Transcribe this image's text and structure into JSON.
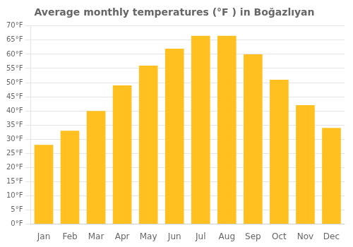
{
  "chart_data": {
    "type": "bar",
    "title": "Average monthly temperatures (°F ) in Boğazlıyan",
    "categories": [
      "Jan",
      "Feb",
      "Mar",
      "Apr",
      "May",
      "Jun",
      "Jul",
      "Aug",
      "Sep",
      "Oct",
      "Nov",
      "Dec"
    ],
    "values": [
      28,
      33,
      40,
      49,
      56,
      62,
      66.5,
      66.5,
      60,
      51,
      42,
      34
    ],
    "color": "#FFC020",
    "ylim": [
      0,
      70
    ],
    "yticks": [
      {
        "value": 0,
        "label": "0°F"
      },
      {
        "value": 5,
        "label": "5°F"
      },
      {
        "value": 10,
        "label": "10°F"
      },
      {
        "value": 15,
        "label": "15°F"
      },
      {
        "value": 20,
        "label": "20°F"
      },
      {
        "value": 25,
        "label": "25°F"
      },
      {
        "value": 30,
        "label": "30°F"
      },
      {
        "value": 35,
        "label": "35°F"
      },
      {
        "value": 40,
        "label": "40°F"
      },
      {
        "value": 45,
        "label": "45°F"
      },
      {
        "value": 50,
        "label": "50°F"
      },
      {
        "value": 55,
        "label": "55°F"
      },
      {
        "value": 60,
        "label": "60°F"
      },
      {
        "value": 65,
        "label": "65°F"
      },
      {
        "value": 70,
        "label": "70°F"
      }
    ],
    "grid": true
  }
}
